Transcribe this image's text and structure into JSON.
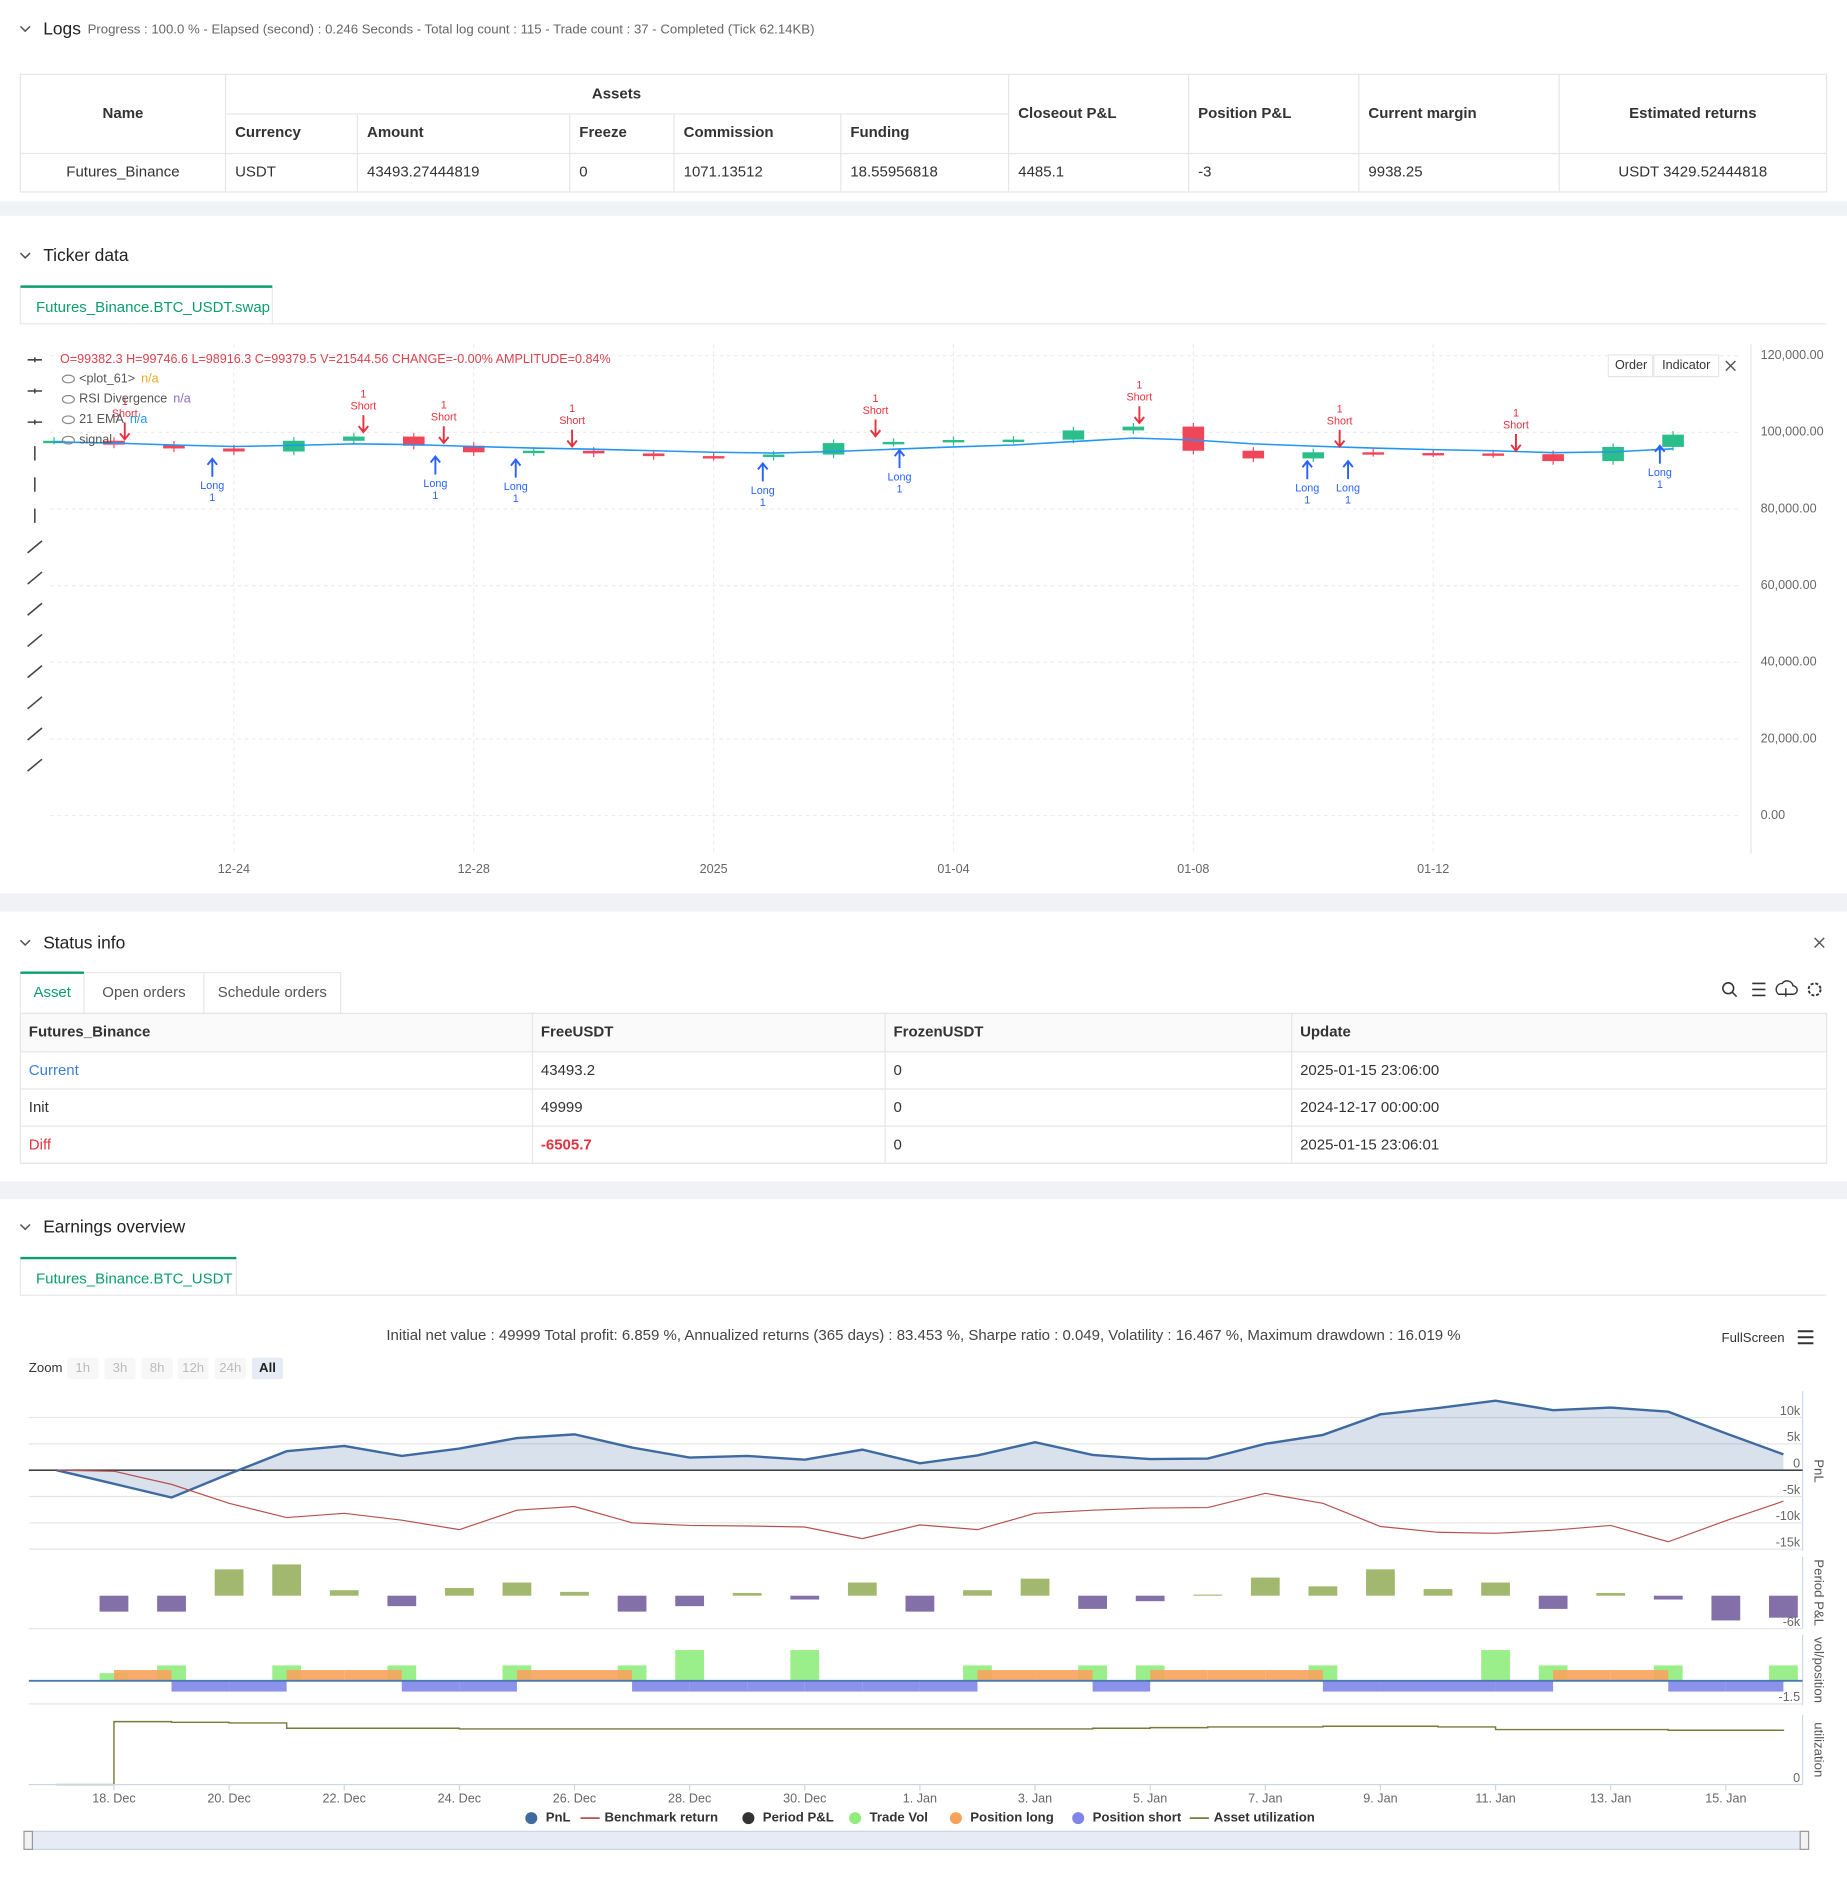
{
  "logs": {
    "title": "Logs",
    "summary": "Progress : 100.0 % - Elapsed (second) : 0.246 Seconds - Total log count : 115 - Trade count : 37 - Completed (Tick 62.14KB)"
  },
  "assets": {
    "group": "Assets",
    "columns": [
      "Name",
      "Currency",
      "Amount",
      "Freeze",
      "Commission",
      "Funding",
      "Closeout P&L",
      "Position P&L",
      "Current margin",
      "Estimated returns"
    ],
    "row": [
      "Futures_Binance",
      "USDT",
      "43493.27444819",
      "0",
      "1071.13512",
      "18.55956818",
      "4485.1",
      "-3",
      "9938.25",
      "USDT 3429.52444818"
    ]
  },
  "ticker": {
    "title": "Ticker data",
    "tab": "Futures_Binance.BTC_USDT.swap",
    "ohlc": "O=99382.3 H=99746.6 L=98916.3 C=99379.5 V=21544.56 CHANGE=-0.00% AMPLITUDE=0.84%",
    "buttons": [
      "Order",
      "Indicator"
    ],
    "legend": [
      {
        "name": "<plot_61>",
        "value": "n/a",
        "color": "#f5a623"
      },
      {
        "name": "RSI Divergence",
        "value": "n/a",
        "color": "#8e6cc4"
      },
      {
        "name": "signal"
      }
    ],
    "ema_value": "n/a",
    "chart_data": {
      "type": "candlestick",
      "categories": [
        null,
        null,
        null,
        "12-24",
        null,
        null,
        null,
        "12-28",
        null,
        null,
        null,
        "2025",
        null,
        null,
        null,
        "01-04",
        null,
        null,
        null,
        "01-08",
        null,
        null,
        null,
        "01-12",
        null,
        null,
        null,
        null
      ],
      "values": [
        97800,
        96800,
        95800,
        95000,
        97800,
        98900,
        96500,
        94800,
        95200,
        94500,
        93800,
        93600,
        94200,
        97200,
        97500,
        98000,
        98100,
        100500,
        101500,
        95200,
        93200,
        94800,
        94600,
        94500,
        94300,
        92500,
        96200,
        99400
      ],
      "up_color": "#2bbd8a",
      "down_color": "#f0465a",
      "series": [
        {
          "name": "21 EMA",
          "color": "#2196f3",
          "values": [
            97500,
            97200,
            96700,
            96300,
            96600,
            97000,
            96800,
            96300,
            95900,
            95600,
            95200,
            94800,
            94600,
            95000,
            95600,
            96200,
            96700,
            97600,
            98500,
            98000,
            97000,
            96400,
            95900,
            95500,
            95200,
            94700,
            94900,
            95700
          ]
        }
      ],
      "ylim": [
        -10000,
        123000
      ],
      "yticks": [
        {
          "value": 0,
          "label": "0.00"
        },
        {
          "value": 20000,
          "label": "20,000.00"
        },
        {
          "value": 40000,
          "label": "40,000.00"
        },
        {
          "value": 60000,
          "label": "60,000.00"
        },
        {
          "value": 80000,
          "label": "80,000.00"
        },
        {
          "value": 100000,
          "label": "100,000.00"
        },
        {
          "value": 120000,
          "label": "120,000.00"
        }
      ],
      "grid": true,
      "signals": [
        {
          "label": "Short",
          "qty": 1
        },
        {
          "label": "Long",
          "qty": 1
        },
        {
          "label": "Short",
          "qty": 1
        },
        {
          "label": "Long",
          "qty": 1
        },
        {
          "label": "Short",
          "qty": 1
        },
        {
          "label": "Long",
          "qty": 1
        },
        {
          "label": "Short",
          "qty": 1
        },
        {
          "label": "Long",
          "qty": 1
        },
        {
          "label": "Short",
          "qty": 1
        },
        {
          "label": "Long",
          "qty": 1
        },
        {
          "label": "Short",
          "qty": 1
        },
        {
          "label": "Long",
          "qty": 1
        },
        {
          "label": "Short",
          "qty": 1
        },
        {
          "label": "Long",
          "qty": 1
        },
        {
          "label": "Short",
          "qty": 1
        },
        {
          "label": "Long",
          "qty": 1
        }
      ]
    }
  },
  "status": {
    "title": "Status info",
    "tabs": [
      "Asset",
      "Open orders",
      "Schedule orders"
    ],
    "columns": [
      "Futures_Binance",
      "FreeUSDT",
      "FrozenUSDT",
      "Update"
    ],
    "rows": [
      [
        "Current",
        "43493.2",
        "0",
        "2025-01-15 23:06:00"
      ],
      [
        "Init",
        "49999",
        "0",
        "2024-12-17 00:00:00"
      ],
      [
        "Diff",
        "-6505.7",
        "0",
        "2025-01-15 23:06:01"
      ]
    ]
  },
  "earnings": {
    "title": "Earnings overview",
    "tab": "Futures_Binance.BTC_USDT",
    "summary": "Initial net value : 49999 Total profit: 6.859 %, Annualized returns (365 days) : 83.453 %, Sharpe ratio : 0.049, Volatility : 16.467 %, Maximum drawdown : 16.019 %",
    "fullscreen": "FullScreen",
    "zoom": {
      "label": "Zoom",
      "options": [
        "1h",
        "3h",
        "8h",
        "12h",
        "24h",
        "All"
      ]
    },
    "chart_data": [
      {
        "type": "area",
        "ylabel": "PnL",
        "ylim": [
          -15300,
          15000
        ],
        "yticks": [
          {
            "value": 10000,
            "label": "10k"
          },
          {
            "value": 5000,
            "label": "5k"
          },
          0,
          {
            "value": -5000,
            "label": "-5k"
          },
          {
            "value": -10000,
            "label": "-10k"
          },
          {
            "value": -15000,
            "label": "-15k"
          }
        ],
        "series": [
          {
            "name": "PnL",
            "color": "#3e6aa0",
            "values": [
              0,
              -2600,
              -5200,
              -700,
              3600,
              4600,
              2700,
              4100,
              6100,
              6800,
              4300,
              2400,
              2700,
              2000,
              3900,
              1300,
              2800,
              5300,
              2900,
              2100,
              2200,
              5000,
              6700,
              10600,
              11800,
              13200,
              11400,
              11900,
              11100,
              7000,
              3000
            ]
          },
          {
            "name": "Benchmark return",
            "color": "#b5524f",
            "values": [
              0,
              -200,
              -2700,
              -6300,
              -9000,
              -8200,
              -9500,
              -11300,
              -7600,
              -6900,
              -10000,
              -10500,
              -10600,
              -10800,
              -13000,
              -10400,
              -11300,
              -8200,
              -7600,
              -7200,
              -7100,
              -4400,
              -6300,
              -10700,
              -11800,
              -12000,
              -11400,
              -10500,
              -13600,
              -9600,
              -5900
            ]
          }
        ]
      },
      {
        "type": "bar",
        "ylabel": "Period P&L",
        "ylim": [
          -6000,
          7100
        ],
        "yticks": [
          {
            "value": -6000,
            "label": "-6k"
          }
        ],
        "series": [
          {
            "name": "Period P&L",
            "color": "#333333",
            "pos_color": "#98b05e",
            "neg_color": "#7560a0",
            "values": [
              null,
              -2900,
              -2900,
              4800,
              5700,
              1000,
              -1900,
              1400,
              2400,
              700,
              -2900,
              -1900,
              500,
              -700,
              2400,
              -2900,
              1000,
              3100,
              -2400,
              -1000,
              200,
              3300,
              1700,
              4800,
              1200,
              2400,
              -2400,
              500,
              -700,
              -4500,
              -4000
            ]
          }
        ]
      },
      {
        "type": "bar",
        "ylabel": "vol/position",
        "ylim": [
          -1.6,
          3.0
        ],
        "yticks": [
          -1.5
        ],
        "series": [
          {
            "name": "Trade Vol",
            "color": "#90ed7d",
            "values": [
              0,
              0.5,
              1,
              0,
              1,
              0,
              1,
              0,
              1,
              0,
              1,
              2,
              0,
              2,
              0,
              0,
              1,
              0,
              1,
              1,
              0,
              0,
              1,
              0,
              0,
              2,
              1,
              0,
              1,
              0,
              1
            ]
          },
          {
            "name": "Position long",
            "color": "#f7a35c",
            "values": [
              0,
              0.7,
              0,
              0,
              0.7,
              0.7,
              0,
              0,
              0.7,
              0.7,
              0,
              0,
              0,
              0,
              0,
              0,
              0.7,
              0.7,
              0,
              0.7,
              0.7,
              0.7,
              0,
              0,
              0,
              0,
              0.7,
              0.7,
              0,
              0,
              0
            ]
          },
          {
            "name": "Position short",
            "color": "#8085e9",
            "values": [
              0,
              0,
              -0.7,
              -0.7,
              0,
              0,
              -0.7,
              -0.7,
              0,
              0,
              -0.7,
              -0.7,
              -0.7,
              -0.7,
              -0.7,
              -0.7,
              0,
              0,
              -0.7,
              0,
              0,
              0,
              -0.7,
              -0.7,
              -0.7,
              -0.7,
              0,
              0,
              -0.7,
              -0.7,
              0
            ]
          }
        ]
      },
      {
        "type": "step",
        "ylabel": "utilization",
        "ylim": [
          0,
          105
        ],
        "yticks": [
          0
        ],
        "categories": [
          null,
          "18. Dec",
          null,
          "20. Dec",
          null,
          "22. Dec",
          null,
          "24. Dec",
          null,
          "26. Dec",
          null,
          "28. Dec",
          null,
          "30. Dec",
          null,
          "1. Jan",
          null,
          "3. Jan",
          null,
          "5. Jan",
          null,
          "7. Jan",
          null,
          "9. Jan",
          null,
          "11. Jan",
          null,
          "13. Jan",
          null,
          "15. Jan",
          null
        ],
        "series": [
          {
            "name": "Asset utilization",
            "color": "#7a7a3a",
            "values": [
              0,
              95,
              94,
              93,
              85,
              85,
              85,
              84,
              84,
              84,
              84,
              84,
              84,
              84,
              84,
              84,
              84,
              84,
              85,
              86,
              87,
              87,
              88,
              88,
              87,
              83,
              83,
              83,
              82,
              82,
              83
            ]
          }
        ]
      }
    ]
  }
}
